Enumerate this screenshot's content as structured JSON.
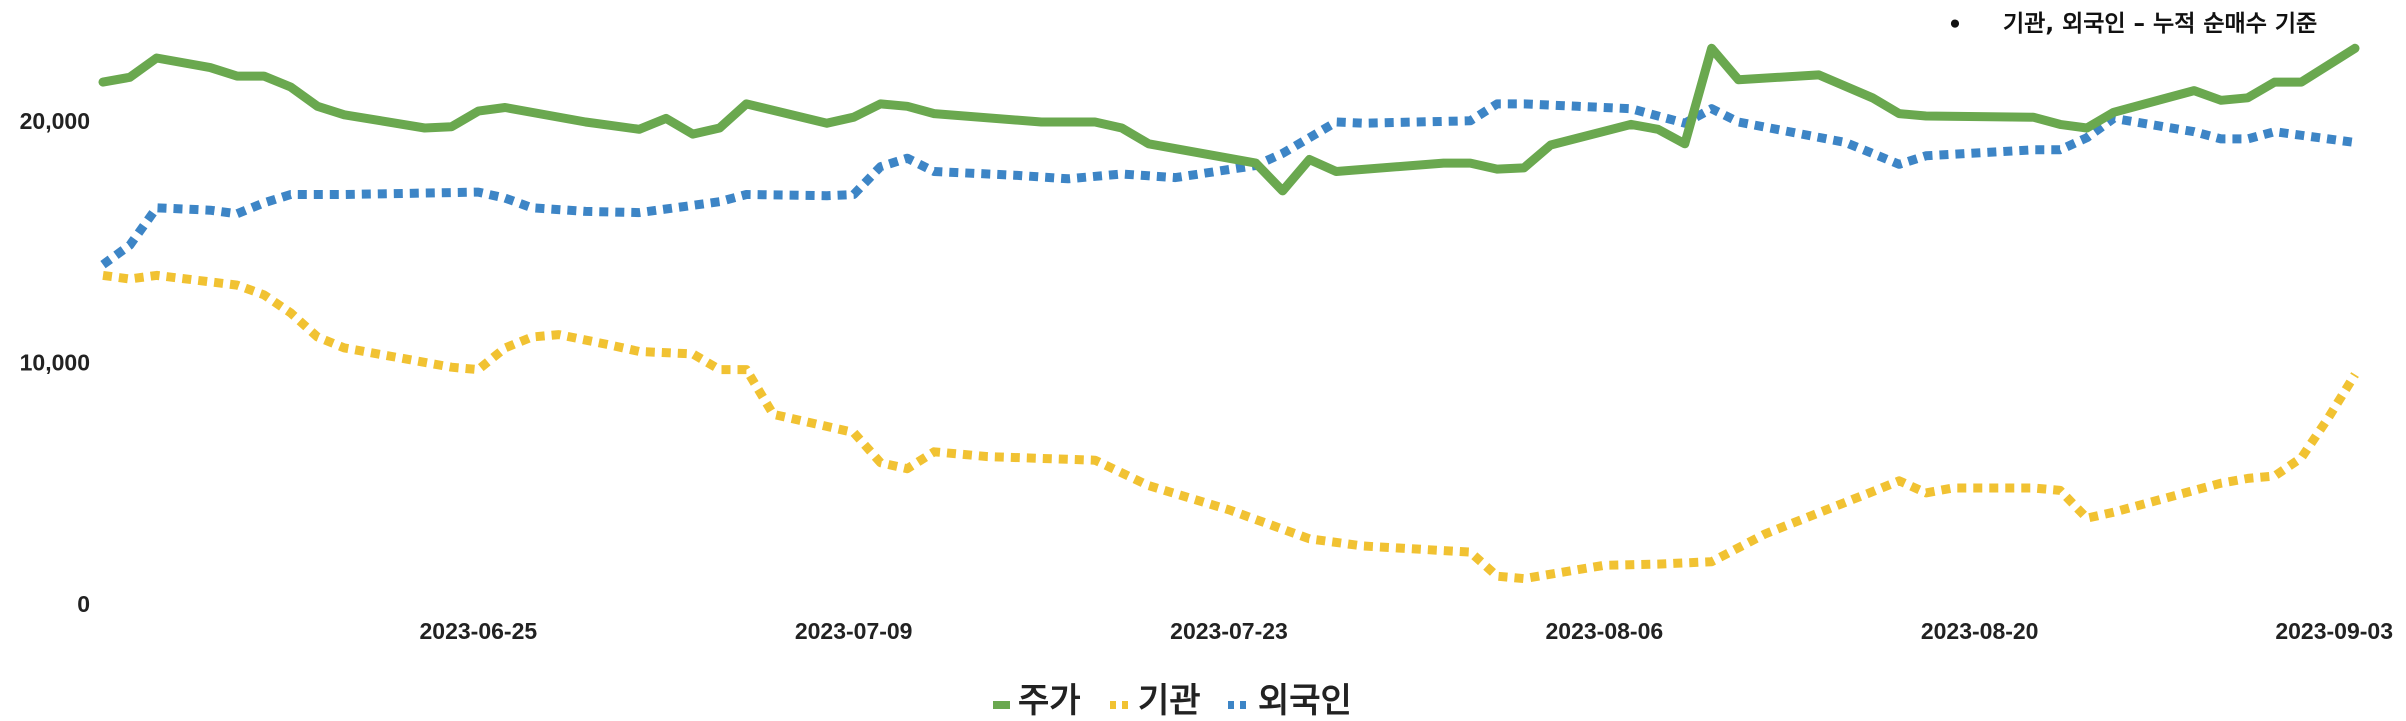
{
  "chart_data": {
    "type": "line",
    "title": "",
    "xlabel": "",
    "ylabel": "",
    "ylim": [
      0,
      25000
    ],
    "y_ticks": [
      0,
      10000,
      20000
    ],
    "y_tick_labels": [
      "0",
      "10,000",
      "20,000"
    ],
    "x_range": [
      "2023-06-11",
      "2023-09-03"
    ],
    "x_ticks": [
      "2023-06-25",
      "2023-07-09",
      "2023-07-23",
      "2023-08-06",
      "2023-08-20",
      "2023-09-03"
    ],
    "grid": false,
    "legend_position": "bottom",
    "annotation": "기관, 외국인 – 누적 순매수 기준",
    "annotation_bullet": "•",
    "series": [
      {
        "name": "주가",
        "color": "#6aa84f",
        "style": "solid",
        "points": [
          [
            "2023-06-11",
            21600
          ],
          [
            "2023-06-12",
            21800
          ],
          [
            "2023-06-13",
            22600
          ],
          [
            "2023-06-15",
            22200
          ],
          [
            "2023-06-16",
            21850
          ],
          [
            "2023-06-17",
            21850
          ],
          [
            "2023-06-18",
            21400
          ],
          [
            "2023-06-19",
            20600
          ],
          [
            "2023-06-20",
            20250
          ],
          [
            "2023-06-23",
            19700
          ],
          [
            "2023-06-24",
            19750
          ],
          [
            "2023-06-25",
            20400
          ],
          [
            "2023-06-26",
            20550
          ],
          [
            "2023-06-29",
            19950
          ],
          [
            "2023-07-01",
            19650
          ],
          [
            "2023-07-02",
            20100
          ],
          [
            "2023-07-03",
            19450
          ],
          [
            "2023-07-04",
            19700
          ],
          [
            "2023-07-05",
            20700
          ],
          [
            "2023-07-08",
            19900
          ],
          [
            "2023-07-09",
            20150
          ],
          [
            "2023-07-10",
            20700
          ],
          [
            "2023-07-11",
            20600
          ],
          [
            "2023-07-12",
            20300
          ],
          [
            "2023-07-16",
            19950
          ],
          [
            "2023-07-18",
            19950
          ],
          [
            "2023-07-19",
            19700
          ],
          [
            "2023-07-20",
            19050
          ],
          [
            "2023-07-24",
            18250
          ],
          [
            "2023-07-25",
            17100
          ],
          [
            "2023-07-26",
            18400
          ],
          [
            "2023-07-27",
            17900
          ],
          [
            "2023-07-31",
            18250
          ],
          [
            "2023-08-01",
            18250
          ],
          [
            "2023-08-02",
            18000
          ],
          [
            "2023-08-03",
            18050
          ],
          [
            "2023-08-04",
            19000
          ],
          [
            "2023-08-07",
            19850
          ],
          [
            "2023-08-08",
            19650
          ],
          [
            "2023-08-09",
            19050
          ],
          [
            "2023-08-10",
            23000
          ],
          [
            "2023-08-11",
            21700
          ],
          [
            "2023-08-14",
            21900
          ],
          [
            "2023-08-16",
            20950
          ],
          [
            "2023-08-17",
            20300
          ],
          [
            "2023-08-18",
            20200
          ],
          [
            "2023-08-22",
            20150
          ],
          [
            "2023-08-23",
            19850
          ],
          [
            "2023-08-24",
            19700
          ],
          [
            "2023-08-25",
            20350
          ],
          [
            "2023-08-28",
            21250
          ],
          [
            "2023-08-29",
            20850
          ],
          [
            "2023-08-30",
            20950
          ],
          [
            "2023-08-31",
            21600
          ],
          [
            "2023-09-01",
            21600
          ],
          [
            "2023-09-03",
            23000
          ]
        ]
      },
      {
        "name": "기관",
        "color": "#f1c232",
        "style": "dotted",
        "points": [
          [
            "2023-06-11",
            13600
          ],
          [
            "2023-06-12",
            13450
          ],
          [
            "2023-06-13",
            13600
          ],
          [
            "2023-06-16",
            13200
          ],
          [
            "2023-06-17",
            12800
          ],
          [
            "2023-06-18",
            12050
          ],
          [
            "2023-06-19",
            11050
          ],
          [
            "2023-06-20",
            10600
          ],
          [
            "2023-06-24",
            9800
          ],
          [
            "2023-06-25",
            9700
          ],
          [
            "2023-06-26",
            10600
          ],
          [
            "2023-06-27",
            11050
          ],
          [
            "2023-06-28",
            11150
          ],
          [
            "2023-06-30",
            10700
          ],
          [
            "2023-07-01",
            10450
          ],
          [
            "2023-07-03",
            10350
          ],
          [
            "2023-07-04",
            9700
          ],
          [
            "2023-07-05",
            9700
          ],
          [
            "2023-07-06",
            7850
          ],
          [
            "2023-07-09",
            7100
          ],
          [
            "2023-07-10",
            5850
          ],
          [
            "2023-07-11",
            5600
          ],
          [
            "2023-07-12",
            6300
          ],
          [
            "2023-07-14",
            6100
          ],
          [
            "2023-07-18",
            5950
          ],
          [
            "2023-07-20",
            4900
          ],
          [
            "2023-07-23",
            3900
          ],
          [
            "2023-07-26",
            2700
          ],
          [
            "2023-07-28",
            2400
          ],
          [
            "2023-08-01",
            2150
          ],
          [
            "2023-08-02",
            1150
          ],
          [
            "2023-08-03",
            1050
          ],
          [
            "2023-08-06",
            1600
          ],
          [
            "2023-08-08",
            1650
          ],
          [
            "2023-08-09",
            1700
          ],
          [
            "2023-08-10",
            1750
          ],
          [
            "2023-08-12",
            2900
          ],
          [
            "2023-08-16",
            4650
          ],
          [
            "2023-08-17",
            5100
          ],
          [
            "2023-08-18",
            4600
          ],
          [
            "2023-08-19",
            4800
          ],
          [
            "2023-08-22",
            4800
          ],
          [
            "2023-08-23",
            4700
          ],
          [
            "2023-08-24",
            3550
          ],
          [
            "2023-08-25",
            3800
          ],
          [
            "2023-08-28",
            4700
          ],
          [
            "2023-08-29",
            5000
          ],
          [
            "2023-08-30",
            5200
          ],
          [
            "2023-08-31",
            5300
          ],
          [
            "2023-09-01",
            6050
          ],
          [
            "2023-09-02",
            7700
          ],
          [
            "2023-09-03",
            9500
          ]
        ]
      },
      {
        "name": "외국인",
        "color": "#3d85c6",
        "style": "dotted",
        "points": [
          [
            "2023-06-11",
            14050
          ],
          [
            "2023-06-12",
            14850
          ],
          [
            "2023-06-13",
            16400
          ],
          [
            "2023-06-15",
            16300
          ],
          [
            "2023-06-16",
            16150
          ],
          [
            "2023-06-17",
            16600
          ],
          [
            "2023-06-18",
            16950
          ],
          [
            "2023-06-20",
            16950
          ],
          [
            "2023-06-25",
            17050
          ],
          [
            "2023-06-26",
            16800
          ],
          [
            "2023-06-27",
            16400
          ],
          [
            "2023-06-29",
            16250
          ],
          [
            "2023-07-01",
            16200
          ],
          [
            "2023-07-02",
            16350
          ],
          [
            "2023-07-04",
            16650
          ],
          [
            "2023-07-05",
            16950
          ],
          [
            "2023-07-08",
            16900
          ],
          [
            "2023-07-09",
            16950
          ],
          [
            "2023-07-10",
            18100
          ],
          [
            "2023-07-11",
            18450
          ],
          [
            "2023-07-12",
            17900
          ],
          [
            "2023-07-15",
            17750
          ],
          [
            "2023-07-17",
            17600
          ],
          [
            "2023-07-19",
            17800
          ],
          [
            "2023-07-21",
            17650
          ],
          [
            "2023-07-24",
            18150
          ],
          [
            "2023-07-25",
            18650
          ],
          [
            "2023-07-26",
            19300
          ],
          [
            "2023-07-27",
            19950
          ],
          [
            "2023-07-28",
            19900
          ],
          [
            "2023-08-01",
            20000
          ],
          [
            "2023-08-02",
            20700
          ],
          [
            "2023-08-03",
            20700
          ],
          [
            "2023-08-05",
            20600
          ],
          [
            "2023-08-07",
            20500
          ],
          [
            "2023-08-09",
            19900
          ],
          [
            "2023-08-10",
            20500
          ],
          [
            "2023-08-11",
            19950
          ],
          [
            "2023-08-15",
            19100
          ],
          [
            "2023-08-17",
            18200
          ],
          [
            "2023-08-18",
            18550
          ],
          [
            "2023-08-22",
            18800
          ],
          [
            "2023-08-23",
            18800
          ],
          [
            "2023-08-24",
            19300
          ],
          [
            "2023-08-25",
            20100
          ],
          [
            "2023-08-28",
            19550
          ],
          [
            "2023-08-29",
            19250
          ],
          [
            "2023-08-30",
            19250
          ],
          [
            "2023-08-31",
            19550
          ],
          [
            "2023-09-01",
            19400
          ],
          [
            "2023-09-03",
            19100
          ]
        ]
      }
    ]
  }
}
